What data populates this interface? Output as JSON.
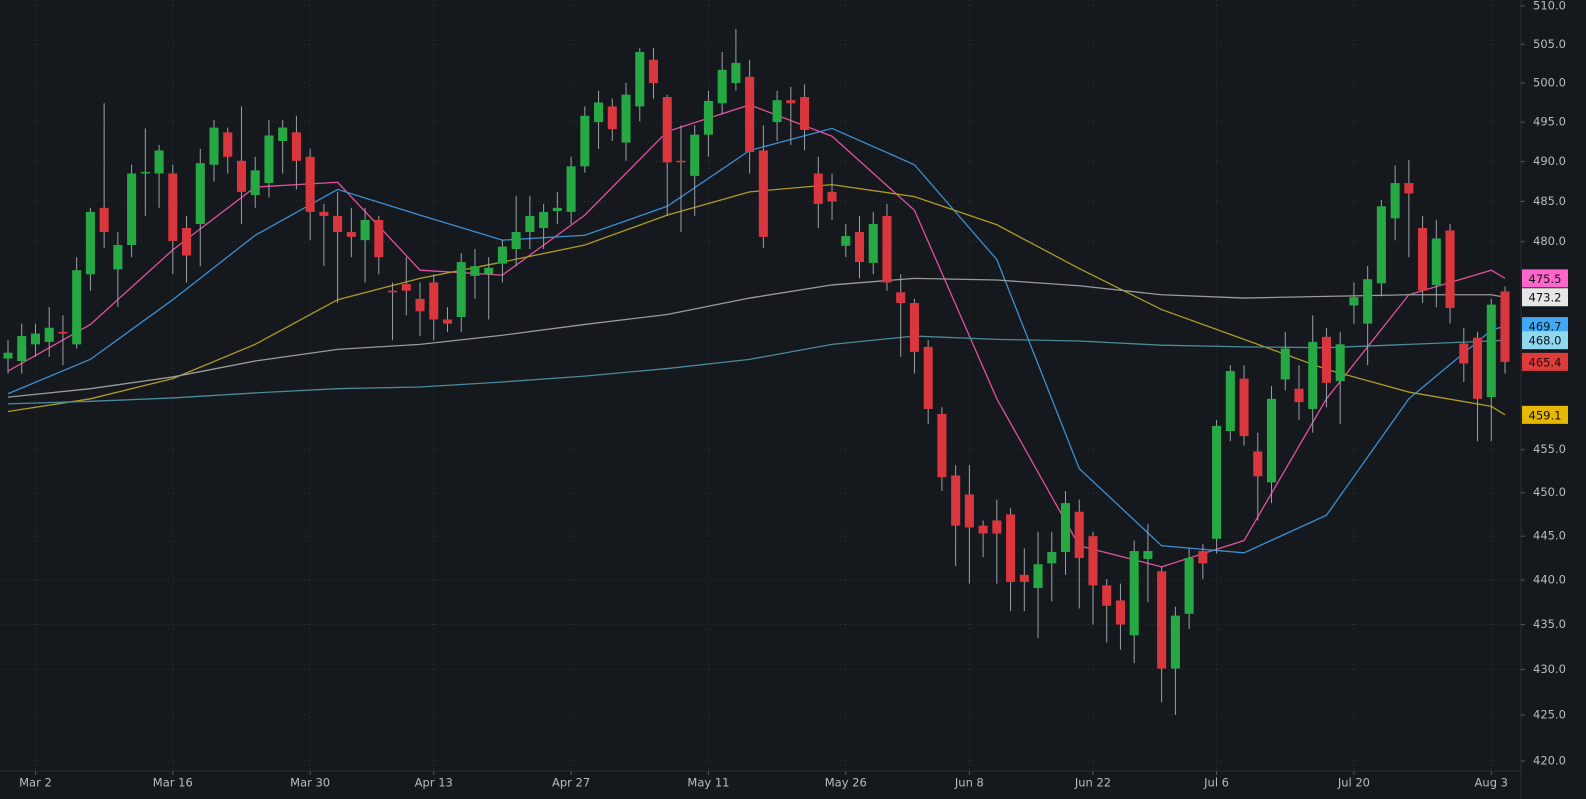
{
  "chart_data": {
    "type": "candlestick",
    "categories": [
      null,
      null,
      "Mar 2",
      null,
      null,
      null,
      null,
      null,
      null,
      null,
      null,
      null,
      "Mar 16",
      null,
      null,
      null,
      null,
      null,
      null,
      null,
      null,
      null,
      "Mar 30",
      null,
      null,
      null,
      null,
      null,
      null,
      null,
      null,
      "Apr 13",
      null,
      null,
      null,
      null,
      null,
      null,
      null,
      null,
      null,
      "Apr 27",
      null,
      null,
      null,
      null,
      null,
      null,
      null,
      null,
      null,
      "May 11",
      null,
      null,
      null,
      null,
      null,
      null,
      null,
      null,
      null,
      "May 26",
      null,
      null,
      null,
      null,
      null,
      null,
      null,
      null,
      "Jun 8",
      null,
      null,
      null,
      null,
      null,
      null,
      null,
      null,
      "Jun 22",
      null,
      null,
      null,
      null,
      null,
      null,
      null,
      null,
      "Jul 6",
      null,
      null,
      null,
      null,
      null,
      null,
      null,
      null,
      null,
      "Jul 20",
      null,
      null,
      null,
      null,
      null,
      null,
      null,
      null,
      null,
      "Aug 3",
      null
    ],
    "open": [
      465.8,
      465.5,
      467.5,
      467.8,
      469,
      467.5,
      476,
      484.2,
      476.6,
      479.6,
      488.5,
      488.5,
      488.5,
      481.7,
      482.2,
      489.6,
      493.7,
      490.1,
      485.8,
      487.3,
      492.6,
      493.7,
      490.6,
      483.7,
      483.2,
      481.2,
      480.2,
      482.7,
      474,
      474.8,
      473,
      475,
      470.5,
      470.8,
      475.8,
      476,
      477.3,
      479.1,
      481.2,
      481.7,
      483.8,
      483.7,
      489.4,
      495,
      497,
      492.4,
      497,
      503,
      498.2,
      490.1,
      488.2,
      493.4,
      497.4,
      500,
      500.8,
      491.4,
      495,
      497.8,
      498.2,
      488.5,
      486.2,
      479.5,
      481.2,
      477.4,
      483.2,
      473.8,
      472.5,
      467.2,
      459.2,
      452,
      449.8,
      446.2,
      446.8,
      447.5,
      440.6,
      439.1,
      441.9,
      443.2,
      447.8,
      445,
      439.4,
      437.7,
      433.8,
      442.4,
      441,
      430.1,
      436.2,
      443.3,
      444.7,
      457.2,
      463.4,
      454.8,
      451.2,
      463.3,
      462.2,
      459.8,
      468.4,
      463.1,
      472.2,
      470,
      474.9,
      482.9,
      487.3,
      481.7,
      474.7,
      481.4,
      467.6,
      468.3,
      461.2,
      473.9
    ],
    "high": [
      468,
      470,
      470,
      472,
      471,
      478.1,
      484.2,
      497.4,
      481.2,
      489.6,
      494.2,
      492.1,
      489.6,
      483.2,
      491.6,
      495.3,
      494.3,
      497,
      490.6,
      495.3,
      495.3,
      495.8,
      491.6,
      484.7,
      486.2,
      484.2,
      484.2,
      483.2,
      475,
      478.1,
      475,
      476,
      472,
      478.6,
      479.1,
      478.1,
      480.2,
      485.7,
      485.7,
      484.7,
      486.2,
      490.6,
      497,
      499,
      498,
      500,
      504.5,
      504.5,
      498.5,
      494.6,
      494.6,
      499,
      504,
      507,
      503,
      494.6,
      499,
      499.5,
      499.8,
      490.6,
      488.5,
      482.2,
      483.2,
      483.7,
      484.7,
      476,
      473,
      468,
      460,
      453.2,
      453.2,
      446.8,
      449.2,
      448.2,
      443.6,
      445.5,
      445.5,
      450.2,
      449.2,
      445.5,
      440.1,
      439.6,
      444.5,
      446.4,
      441.6,
      437,
      443.6,
      444.1,
      458.5,
      465,
      465,
      457,
      462.5,
      469,
      465,
      471,
      469.5,
      469,
      475,
      477,
      485.2,
      489.5,
      490.2,
      483.2,
      482.7,
      482.2,
      469.5,
      469,
      473,
      474.5
    ],
    "low": [
      464,
      464,
      466,
      466,
      465,
      467,
      474,
      479.2,
      472,
      478.1,
      483.2,
      484.2,
      476,
      475,
      477,
      487.5,
      488.5,
      482.2,
      484.2,
      485.5,
      488.5,
      486.5,
      480.2,
      477,
      472.5,
      478.1,
      475,
      476,
      468,
      471,
      468.5,
      468,
      469,
      469,
      473,
      470.5,
      475,
      477,
      479.1,
      479.1,
      482.2,
      482.2,
      488.6,
      491.6,
      492.6,
      490.1,
      495.1,
      498,
      483.2,
      481.2,
      483.2,
      490.6,
      496,
      499,
      488.5,
      479.2,
      492.6,
      492.1,
      491.4,
      481.7,
      482.7,
      478.1,
      475.5,
      476,
      474,
      466,
      464,
      458,
      450.2,
      441.6,
      439.6,
      442.6,
      439.6,
      436.5,
      436.5,
      433.5,
      437.6,
      440.6,
      436.8,
      435,
      433,
      432.2,
      430.7,
      437.5,
      426.4,
      425,
      434.5,
      440.1,
      443,
      456,
      455.5,
      446.8,
      448.8,
      462,
      458.5,
      457,
      460,
      458,
      470,
      465,
      473.3,
      480.2,
      478.1,
      472.5,
      472,
      470,
      463,
      456,
      456,
      464
    ],
    "close": [
      466.5,
      468.5,
      468.8,
      469.5,
      468.8,
      476.5,
      483.7,
      481.2,
      479.6,
      488.5,
      488.7,
      491.4,
      480.1,
      478.3,
      489.8,
      494.3,
      490.6,
      486.2,
      488.9,
      493.3,
      494.3,
      490.1,
      483.7,
      483.2,
      481.2,
      480.6,
      482.7,
      478.1,
      473.8,
      474,
      471.5,
      470.5,
      470,
      477.5,
      477,
      476.8,
      479.4,
      481.2,
      483.2,
      483.7,
      484.2,
      489.4,
      495.8,
      497.5,
      494.1,
      498.5,
      504,
      500,
      489.9,
      489.9,
      493.4,
      497.7,
      501.7,
      502.6,
      491.2,
      480.6,
      497.8,
      497.4,
      494,
      484.7,
      485,
      480.7,
      477.5,
      482.2,
      475,
      472.5,
      466.6,
      459.8,
      451.8,
      446.2,
      446,
      445.3,
      445.3,
      439.8,
      439.8,
      441.8,
      443.2,
      448.8,
      442.5,
      439.4,
      437.1,
      435,
      443.3,
      443.3,
      430.1,
      436,
      442.5,
      441.9,
      457.8,
      464.3,
      456.6,
      451.9,
      461,
      467,
      460.6,
      467.8,
      462.9,
      467.5,
      473.2,
      475.4,
      484.4,
      487.3,
      486,
      474,
      480.4,
      471.9,
      465.2,
      461,
      472.3,
      465.4
    ],
    "up_color": "#26a844",
    "down_color": "#d9363e",
    "lines": [
      {
        "color": "#e0509e",
        "x": [
          0,
          6,
          12,
          18,
          24,
          30,
          36,
          42,
          48,
          54,
          60,
          66,
          72,
          78,
          84,
          90,
          96,
          102,
          108,
          109
        ],
        "values": [
          464.3,
          469.9,
          479,
          486.8,
          487.4,
          476.5,
          475.9,
          483.3,
          493.8,
          497.2,
          493.2,
          483.9,
          461,
          443.9,
          441.5,
          444.5,
          461,
          473.5,
          476.5,
          475.5
        ]
      },
      {
        "color": "#3b8fd4",
        "x": [
          0,
          6,
          12,
          18,
          24,
          30,
          36,
          42,
          48,
          54,
          60,
          66,
          72,
          78,
          84,
          90,
          96,
          102,
          108,
          109
        ],
        "values": [
          461.6,
          465.7,
          472.9,
          480.8,
          486.5,
          483.3,
          480.2,
          480.8,
          484.4,
          491.4,
          494.2,
          489.6,
          477.8,
          452.8,
          443.9,
          443.1,
          447.4,
          461,
          469.2,
          469.7
        ]
      },
      {
        "color": "#b09a25",
        "x": [
          0,
          6,
          12,
          18,
          24,
          30,
          36,
          42,
          48,
          54,
          60,
          66,
          72,
          78,
          84,
          90,
          96,
          102,
          108,
          109
        ],
        "values": [
          459.5,
          461,
          463.4,
          467.5,
          472.9,
          475.5,
          477.5,
          479.6,
          483.3,
          486.2,
          487.1,
          485.6,
          482.1,
          476.7,
          471.7,
          468.1,
          464.5,
          461.8,
          460.1,
          459.1
        ]
      },
      {
        "color": "#9a9a9a",
        "x": [
          0,
          6,
          12,
          18,
          24,
          30,
          36,
          42,
          48,
          54,
          60,
          66,
          72,
          78,
          84,
          90,
          96,
          102,
          108,
          109
        ],
        "values": [
          461.2,
          462.2,
          463.6,
          465.5,
          466.9,
          467.5,
          468.6,
          469.9,
          471.1,
          473.1,
          474.7,
          475.5,
          475.3,
          474.6,
          473.5,
          473.1,
          473.3,
          473.5,
          473.5,
          473.2
        ]
      },
      {
        "color": "#4a8a9a",
        "x": [
          0,
          6,
          12,
          18,
          24,
          30,
          36,
          42,
          48,
          54,
          60,
          66,
          72,
          78,
          84,
          90,
          96,
          102,
          108,
          109
        ],
        "values": [
          460.4,
          460.7,
          461.1,
          461.7,
          462.2,
          462.4,
          463,
          463.7,
          464.6,
          465.7,
          467.5,
          468.5,
          468.1,
          467.9,
          467.4,
          467.2,
          467.1,
          467.5,
          467.9,
          468
        ]
      }
    ],
    "price_tags": [
      {
        "value": 475.5,
        "label": "475.5",
        "color": "#ff66cc"
      },
      {
        "value": 473.2,
        "label": "473.2",
        "color": "#e6e6e6"
      },
      {
        "value": 469.7,
        "label": "469.7",
        "color": "#3fa9f5"
      },
      {
        "value": 468.0,
        "label": "468.0",
        "color": "#8ed8f0"
      },
      {
        "value": 465.4,
        "label": "465.4",
        "color": "#e03a3a"
      },
      {
        "value": 459.1,
        "label": "459.1",
        "color": "#e6b800"
      }
    ],
    "log": true,
    "grid": true,
    "ylim": [
      420,
      510
    ],
    "yticks": [
      {
        "value": 510,
        "label": "510.0"
      },
      {
        "value": 505,
        "label": "505.0"
      },
      {
        "value": 500,
        "label": "500.0"
      },
      {
        "value": 495,
        "label": "495.0"
      },
      {
        "value": 490,
        "label": "490.0"
      },
      {
        "value": 485,
        "label": "485.0"
      },
      {
        "value": 480,
        "label": "480.0"
      },
      {
        "value": 455,
        "label": "455.0"
      },
      {
        "value": 450,
        "label": "450.0"
      },
      {
        "value": 445,
        "label": "445.0"
      },
      {
        "value": 440,
        "label": "440.0"
      },
      {
        "value": 435,
        "label": "435.0"
      },
      {
        "value": 430,
        "label": "430.0"
      },
      {
        "value": 425,
        "label": "425.0"
      },
      {
        "value": 420,
        "label": "420.0"
      }
    ]
  }
}
